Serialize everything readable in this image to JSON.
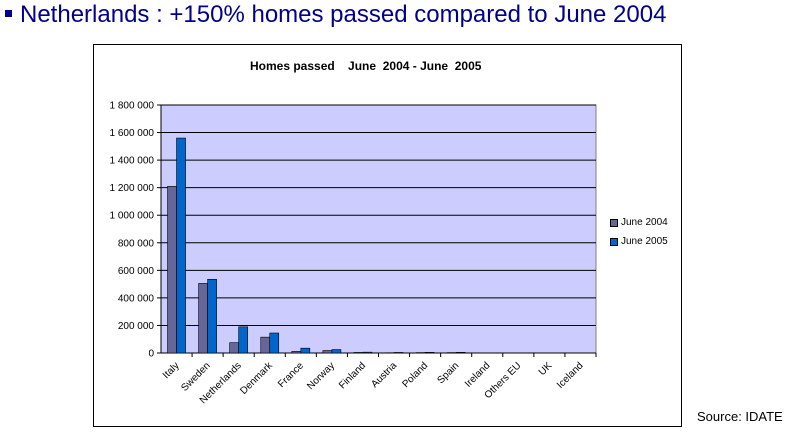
{
  "slide": {
    "title": "Netherlands : +150% homes passed compared to June 2004",
    "source": "Source: IDATE"
  },
  "colors": {
    "title": "#00008b",
    "plot_background": "#ccccff",
    "series_2004": "#666699",
    "series_2005": "#0066cc"
  },
  "chart_data": {
    "type": "bar",
    "title": "Homes passed    June  2004 - June  2005",
    "xlabel": "",
    "ylabel": "",
    "ylim": [
      0,
      1800000
    ],
    "yticks": [
      "0",
      "200 000",
      "400 000",
      "600 000",
      "800 000",
      "1 000 000",
      "1 200 000",
      "1 400 000",
      "1 600 000",
      "1 800 000"
    ],
    "ytick_values": [
      0,
      200000,
      400000,
      600000,
      800000,
      1000000,
      1200000,
      1400000,
      1600000,
      1800000
    ],
    "grid": true,
    "legend_position": "right",
    "categories": [
      "Italy",
      "Sweden",
      "Netherlands",
      "Denmark",
      "France",
      "Norway",
      "Finland",
      "Austria",
      "Poland",
      "Spain",
      "Ireland",
      "Others EU",
      "UK",
      "Iceland"
    ],
    "series": [
      {
        "name": "June 2004",
        "color": "#666699",
        "values": [
          1210000,
          505000,
          75000,
          115000,
          12000,
          18000,
          4000,
          2000,
          3000,
          3000,
          0,
          0,
          0,
          0
        ]
      },
      {
        "name": "June 2005",
        "color": "#0066cc",
        "values": [
          1560000,
          535000,
          190000,
          145000,
          35000,
          25000,
          6000,
          4000,
          5000,
          5000,
          0,
          0,
          0,
          0
        ]
      }
    ]
  }
}
